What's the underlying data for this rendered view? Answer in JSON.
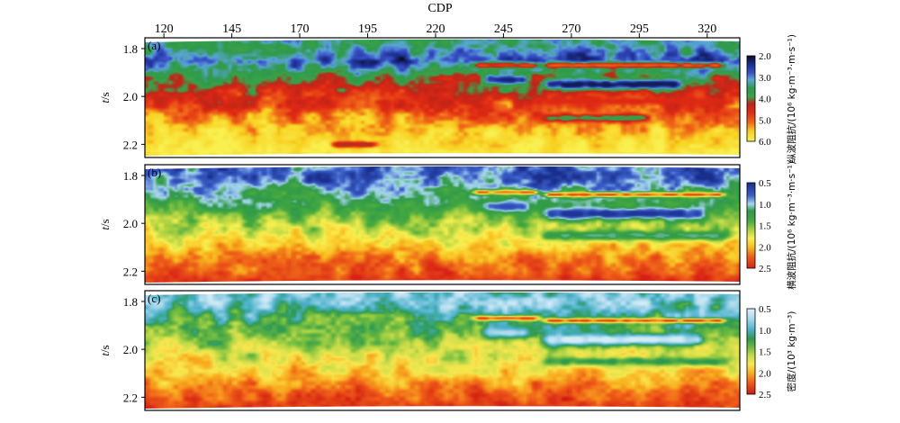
{
  "chart_data": {
    "type": "heatmap",
    "x_axis": {
      "label": "CDP",
      "ticks": [
        120,
        145,
        170,
        195,
        220,
        245,
        270,
        295,
        320
      ],
      "range": [
        113,
        332
      ]
    },
    "y_axis": {
      "label_italic": "t",
      "label_rest": "/s",
      "ticks": [
        "1.8",
        "2.0",
        "2.2"
      ],
      "tick_values": [
        1.8,
        2.0,
        2.2
      ],
      "range": [
        1.755,
        2.255
      ]
    },
    "panels": [
      {
        "id": "a",
        "panel_label": "(a)",
        "colorbar_label": "纵波阻抗/(10⁶ kg·m⁻³·m·s⁻¹)",
        "colorbar_ticks": [
          "2.0",
          "3.0",
          "4.0",
          "5.0",
          "6.0"
        ],
        "range": [
          2.0,
          6.0
        ],
        "colorscale": [
          [
            0.0,
            "#0c0c22"
          ],
          [
            0.1,
            "#1a2e8c"
          ],
          [
            0.2,
            "#3a52c8"
          ],
          [
            0.28,
            "#5aa6d8"
          ],
          [
            0.38,
            "#2e9a48"
          ],
          [
            0.48,
            "#39a34a"
          ],
          [
            0.56,
            "#c02418"
          ],
          [
            0.66,
            "#e02a14"
          ],
          [
            0.78,
            "#f06818"
          ],
          [
            0.88,
            "#f8d020"
          ],
          [
            1.0,
            "#f8f050"
          ]
        ],
        "layers": [
          {
            "t": 1.79,
            "v": 3.4,
            "a": 0.5,
            "f": 0.05
          },
          {
            "t": 1.85,
            "v": 2.7,
            "a": 0.6,
            "f": 0.07
          },
          {
            "t": 1.92,
            "v": 3.9,
            "a": 0.5,
            "f": 0.06
          },
          {
            "t": 2.0,
            "v": 4.6,
            "a": 0.5,
            "f": 0.05
          },
          {
            "t": 2.07,
            "v": 5.0,
            "a": 0.5,
            "f": 0.06
          },
          {
            "t": 2.14,
            "v": 5.5,
            "a": 0.4,
            "f": 0.08
          },
          {
            "t": 2.23,
            "v": 5.9,
            "a": 0.3,
            "f": 0.05
          }
        ],
        "events": [
          {
            "cdp": [
              232,
              260
            ],
            "t": 1.87,
            "v": 4.8,
            "w": 0.012
          },
          {
            "cdp": [
              258,
              328
            ],
            "t": 1.87,
            "v": 5.0,
            "w": 0.012
          },
          {
            "cdp": [
              258,
              312
            ],
            "t": 1.95,
            "v": 2.2,
            "w": 0.02
          },
          {
            "cdp": [
              236,
              256
            ],
            "t": 1.93,
            "v": 2.3,
            "w": 0.02
          },
          {
            "cdp": [
              258,
              330
            ],
            "t": 2.02,
            "v": 4.6,
            "w": 0.015
          },
          {
            "cdp": [
              258,
              300
            ],
            "t": 2.09,
            "v": 3.7,
            "w": 0.015
          },
          {
            "cdp": [
              180,
              200
            ],
            "t": 2.2,
            "v": 4.2,
            "w": 0.012
          }
        ]
      },
      {
        "id": "b",
        "panel_label": "(b)",
        "colorbar_label": "横波阻抗/(10⁶ kg·m⁻³·m·s⁻¹)",
        "colorbar_ticks": [
          "0.5",
          "1.0",
          "1.5",
          "2.0",
          "2.5"
        ],
        "range": [
          0.5,
          2.5
        ],
        "colorscale": [
          [
            0.0,
            "#1a2e8c"
          ],
          [
            0.15,
            "#3a5ec8"
          ],
          [
            0.25,
            "#a8d8f0"
          ],
          [
            0.33,
            "#2e9a48"
          ],
          [
            0.45,
            "#48aa40"
          ],
          [
            0.55,
            "#a8d040"
          ],
          [
            0.65,
            "#f8f050"
          ],
          [
            0.75,
            "#f8c020"
          ],
          [
            0.85,
            "#f06818"
          ],
          [
            1.0,
            "#d82016"
          ]
        ],
        "layers": [
          {
            "t": 1.8,
            "v": 0.8,
            "a": 0.3,
            "f": 0.05
          },
          {
            "t": 1.86,
            "v": 1.0,
            "a": 0.3,
            "f": 0.07
          },
          {
            "t": 1.93,
            "v": 1.3,
            "a": 0.2,
            "f": 0.06
          },
          {
            "t": 2.01,
            "v": 1.6,
            "a": 0.25,
            "f": 0.05
          },
          {
            "t": 2.09,
            "v": 1.9,
            "a": 0.2,
            "f": 0.06
          },
          {
            "t": 2.17,
            "v": 2.2,
            "a": 0.2,
            "f": 0.08
          },
          {
            "t": 2.24,
            "v": 2.4,
            "a": 0.15,
            "f": 0.05
          }
        ],
        "events": [
          {
            "cdp": [
              232,
              260
            ],
            "t": 1.87,
            "v": 2.2,
            "w": 0.01
          },
          {
            "cdp": [
              258,
              328
            ],
            "t": 1.88,
            "v": 2.3,
            "w": 0.01
          },
          {
            "cdp": [
              258,
              320
            ],
            "t": 1.96,
            "v": 0.55,
            "w": 0.022
          },
          {
            "cdp": [
              236,
              256
            ],
            "t": 1.93,
            "v": 0.7,
            "w": 0.02
          },
          {
            "cdp": [
              258,
              330
            ],
            "t": 2.05,
            "v": 1.1,
            "w": 0.02
          }
        ]
      },
      {
        "id": "c",
        "panel_label": "(c)",
        "colorbar_label": "密度/(10³ kg·m⁻³)",
        "colorbar_ticks": [
          "0.5",
          "1.0",
          "1.5",
          "2.0",
          "2.5"
        ],
        "range": [
          0.5,
          2.5
        ],
        "colorscale": [
          [
            0.0,
            "#e0f2f8"
          ],
          [
            0.12,
            "#a8d8ec"
          ],
          [
            0.25,
            "#48b0c8"
          ],
          [
            0.35,
            "#2e9a50"
          ],
          [
            0.45,
            "#6cba40"
          ],
          [
            0.55,
            "#c8dc48"
          ],
          [
            0.65,
            "#f8e850"
          ],
          [
            0.75,
            "#f8b020"
          ],
          [
            0.86,
            "#f06018"
          ],
          [
            1.0,
            "#d01812"
          ]
        ],
        "layers": [
          {
            "t": 1.8,
            "v": 0.9,
            "a": 0.3,
            "f": 0.05
          },
          {
            "t": 1.86,
            "v": 1.1,
            "a": 0.3,
            "f": 0.07
          },
          {
            "t": 1.93,
            "v": 1.35,
            "a": 0.25,
            "f": 0.06
          },
          {
            "t": 2.01,
            "v": 1.65,
            "a": 0.25,
            "f": 0.05
          },
          {
            "t": 2.09,
            "v": 1.9,
            "a": 0.2,
            "f": 0.06
          },
          {
            "t": 2.17,
            "v": 2.15,
            "a": 0.2,
            "f": 0.08
          },
          {
            "t": 2.24,
            "v": 2.35,
            "a": 0.15,
            "f": 0.05
          }
        ],
        "events": [
          {
            "cdp": [
              232,
              260
            ],
            "t": 1.87,
            "v": 2.3,
            "w": 0.01
          },
          {
            "cdp": [
              258,
              328
            ],
            "t": 1.88,
            "v": 2.3,
            "w": 0.01
          },
          {
            "cdp": [
              258,
              320
            ],
            "t": 1.96,
            "v": 0.55,
            "w": 0.022
          },
          {
            "cdp": [
              236,
              256
            ],
            "t": 1.93,
            "v": 0.7,
            "w": 0.02
          },
          {
            "cdp": [
              258,
              330
            ],
            "t": 2.05,
            "v": 1.2,
            "w": 0.02
          }
        ]
      }
    ]
  }
}
